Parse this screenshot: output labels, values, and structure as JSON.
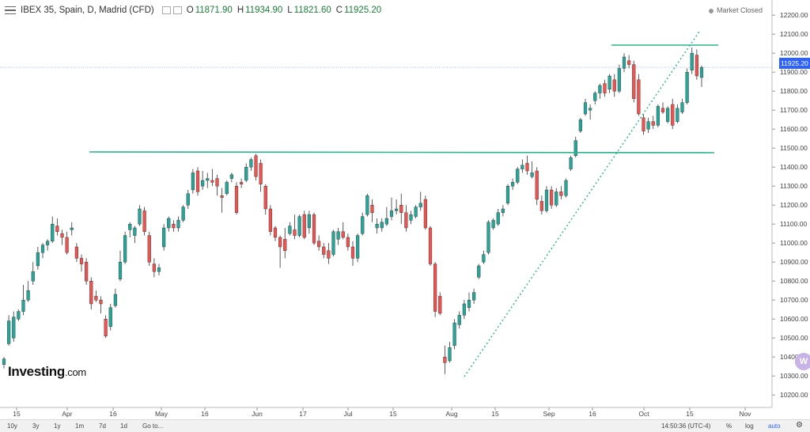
{
  "header": {
    "symbol_title": "IBEX 35, Spain, D, Madrid (CFD)",
    "open_label": "O",
    "open": "11871.90",
    "high_label": "H",
    "high": "11934.90",
    "low_label": "L",
    "low": "11821.60",
    "close_label": "C",
    "close": "11925.20",
    "market_status": "Market Closed"
  },
  "brand": {
    "name": "Investing",
    "suffix": ".com"
  },
  "price_tag": "11925.20",
  "widget_badge": "W",
  "toolbar": {
    "ranges": [
      "10y",
      "3y",
      "1y",
      "1m",
      "7d",
      "1d"
    ],
    "goto": "Go to...",
    "time": "14:50:36 (UTC-4)",
    "percent": "%",
    "log": "log",
    "auto": "auto"
  },
  "colors": {
    "up": "#26a69a",
    "down": "#ef5350",
    "line": "#2bb58a",
    "price_tag": "#2e62ff"
  },
  "chart_data": {
    "type": "candlestick",
    "y_ticks": [
      "12200.00",
      "12100.00",
      "12000.00",
      "11900.00",
      "11800.00",
      "11700.00",
      "11600.00",
      "11500.00",
      "11400.00",
      "11300.00",
      "11200.00",
      "11100.00",
      "11000.00",
      "10900.00",
      "10800.00",
      "10700.00",
      "10600.00",
      "10500.00",
      "10400.00",
      "10300.00",
      "10200.00"
    ],
    "ylim": [
      10180,
      12230
    ],
    "x_ticks": [
      "15",
      "Apr",
      "16",
      "May",
      "16",
      "Jun",
      "17",
      "Jul",
      "15",
      "Aug",
      "15",
      "Sep",
      "16",
      "Oct",
      "15",
      "Nov"
    ],
    "last_price": 11925.2,
    "series": [
      {
        "o": 10360,
        "h": 10400,
        "l": 10340,
        "c": 10390
      },
      {
        "o": 10470,
        "h": 10620,
        "l": 10460,
        "c": 10590
      },
      {
        "o": 10500,
        "h": 10640,
        "l": 10480,
        "c": 10610
      },
      {
        "o": 10600,
        "h": 10650,
        "l": 10590,
        "c": 10640
      },
      {
        "o": 10640,
        "h": 10780,
        "l": 10620,
        "c": 10700
      },
      {
        "o": 10700,
        "h": 10800,
        "l": 10690,
        "c": 10750
      },
      {
        "o": 10800,
        "h": 10900,
        "l": 10780,
        "c": 10850
      },
      {
        "o": 10880,
        "h": 10980,
        "l": 10860,
        "c": 10950
      },
      {
        "o": 10950,
        "h": 11000,
        "l": 10920,
        "c": 10990
      },
      {
        "o": 10990,
        "h": 11020,
        "l": 10960,
        "c": 11010
      },
      {
        "o": 11010,
        "h": 11140,
        "l": 11000,
        "c": 11100
      },
      {
        "o": 11090,
        "h": 11130,
        "l": 11040,
        "c": 11060
      },
      {
        "o": 11050,
        "h": 11070,
        "l": 10990,
        "c": 11030
      },
      {
        "o": 11030,
        "h": 11060,
        "l": 10940,
        "c": 10950
      },
      {
        "o": 11070,
        "h": 11110,
        "l": 11040,
        "c": 11080
      },
      {
        "o": 10980,
        "h": 11000,
        "l": 10900,
        "c": 10920
      },
      {
        "o": 10920,
        "h": 10940,
        "l": 10850,
        "c": 10890
      },
      {
        "o": 10900,
        "h": 10920,
        "l": 10780,
        "c": 10800
      },
      {
        "o": 10800,
        "h": 10820,
        "l": 10650,
        "c": 10680
      },
      {
        "o": 10720,
        "h": 10750,
        "l": 10690,
        "c": 10700
      },
      {
        "o": 10700,
        "h": 10720,
        "l": 10630,
        "c": 10680
      },
      {
        "o": 10600,
        "h": 10620,
        "l": 10500,
        "c": 10510
      },
      {
        "o": 10560,
        "h": 10680,
        "l": 10540,
        "c": 10660
      },
      {
        "o": 10670,
        "h": 10760,
        "l": 10660,
        "c": 10730
      },
      {
        "o": 10810,
        "h": 10960,
        "l": 10800,
        "c": 10900
      },
      {
        "o": 10900,
        "h": 11060,
        "l": 10890,
        "c": 11040
      },
      {
        "o": 11070,
        "h": 11110,
        "l": 11030,
        "c": 11100
      },
      {
        "o": 11040,
        "h": 11090,
        "l": 11000,
        "c": 11080
      },
      {
        "o": 11100,
        "h": 11200,
        "l": 11090,
        "c": 11180
      },
      {
        "o": 11170,
        "h": 11190,
        "l": 11040,
        "c": 11060
      },
      {
        "o": 11040,
        "h": 11060,
        "l": 10880,
        "c": 10900
      },
      {
        "o": 10890,
        "h": 10920,
        "l": 10820,
        "c": 10850
      },
      {
        "o": 10850,
        "h": 10890,
        "l": 10830,
        "c": 10870
      },
      {
        "o": 10980,
        "h": 11100,
        "l": 10960,
        "c": 11080
      },
      {
        "o": 11080,
        "h": 11140,
        "l": 11060,
        "c": 11130
      },
      {
        "o": 11100,
        "h": 11120,
        "l": 11060,
        "c": 11080
      },
      {
        "o": 11080,
        "h": 11140,
        "l": 11060,
        "c": 11120
      },
      {
        "o": 11120,
        "h": 11200,
        "l": 11110,
        "c": 11190
      },
      {
        "o": 11200,
        "h": 11280,
        "l": 11180,
        "c": 11260
      },
      {
        "o": 11280,
        "h": 11390,
        "l": 11260,
        "c": 11370
      },
      {
        "o": 11380,
        "h": 11400,
        "l": 11250,
        "c": 11270
      },
      {
        "o": 11300,
        "h": 11380,
        "l": 11280,
        "c": 11330
      },
      {
        "o": 11330,
        "h": 11370,
        "l": 11290,
        "c": 11340
      },
      {
        "o": 11330,
        "h": 11390,
        "l": 11300,
        "c": 11320
      },
      {
        "o": 11340,
        "h": 11360,
        "l": 11250,
        "c": 11300
      },
      {
        "o": 11250,
        "h": 11290,
        "l": 11160,
        "c": 11240
      },
      {
        "o": 11260,
        "h": 11330,
        "l": 11250,
        "c": 11320
      },
      {
        "o": 11340,
        "h": 11370,
        "l": 11320,
        "c": 11360
      },
      {
        "o": 11300,
        "h": 11320,
        "l": 11150,
        "c": 11160
      },
      {
        "o": 11320,
        "h": 11340,
        "l": 11290,
        "c": 11310
      },
      {
        "o": 11330,
        "h": 11420,
        "l": 11320,
        "c": 11400
      },
      {
        "o": 11400,
        "h": 11450,
        "l": 11380,
        "c": 11440
      },
      {
        "o": 11460,
        "h": 11470,
        "l": 11330,
        "c": 11350
      },
      {
        "o": 11420,
        "h": 11440,
        "l": 11270,
        "c": 11310
      },
      {
        "o": 11300,
        "h": 11310,
        "l": 11150,
        "c": 11180
      },
      {
        "o": 11180,
        "h": 11200,
        "l": 11040,
        "c": 11060
      },
      {
        "o": 11080,
        "h": 11090,
        "l": 11010,
        "c": 11030
      },
      {
        "o": 11030,
        "h": 11040,
        "l": 10870,
        "c": 10980
      },
      {
        "o": 11020,
        "h": 11080,
        "l": 10920,
        "c": 10960
      },
      {
        "o": 11050,
        "h": 11110,
        "l": 11040,
        "c": 11090
      },
      {
        "o": 11070,
        "h": 11150,
        "l": 11020,
        "c": 11040
      },
      {
        "o": 11040,
        "h": 11150,
        "l": 11030,
        "c": 11140
      },
      {
        "o": 11150,
        "h": 11170,
        "l": 11020,
        "c": 11030
      },
      {
        "o": 11080,
        "h": 11170,
        "l": 11050,
        "c": 11150
      },
      {
        "o": 11150,
        "h": 11160,
        "l": 10990,
        "c": 11000
      },
      {
        "o": 11010,
        "h": 11040,
        "l": 10960,
        "c": 10980
      },
      {
        "o": 10980,
        "h": 11000,
        "l": 10920,
        "c": 10940
      },
      {
        "o": 10960,
        "h": 11000,
        "l": 10890,
        "c": 10920
      },
      {
        "o": 10940,
        "h": 11070,
        "l": 10930,
        "c": 11060
      },
      {
        "o": 11020,
        "h": 11080,
        "l": 10990,
        "c": 11060
      },
      {
        "o": 11060,
        "h": 11110,
        "l": 11020,
        "c": 11030
      },
      {
        "o": 11030,
        "h": 11050,
        "l": 10960,
        "c": 10980
      },
      {
        "o": 10980,
        "h": 11010,
        "l": 10880,
        "c": 10920
      },
      {
        "o": 10920,
        "h": 11050,
        "l": 10900,
        "c": 11040
      },
      {
        "o": 11050,
        "h": 11160,
        "l": 11040,
        "c": 11140
      },
      {
        "o": 11150,
        "h": 11260,
        "l": 11140,
        "c": 11250
      },
      {
        "o": 11200,
        "h": 11230,
        "l": 11110,
        "c": 11160
      },
      {
        "o": 11080,
        "h": 11130,
        "l": 11050,
        "c": 11100
      },
      {
        "o": 11080,
        "h": 11130,
        "l": 11060,
        "c": 11110
      },
      {
        "o": 11100,
        "h": 11190,
        "l": 11090,
        "c": 11130
      },
      {
        "o": 11140,
        "h": 11240,
        "l": 11120,
        "c": 11170
      },
      {
        "o": 11170,
        "h": 11230,
        "l": 11150,
        "c": 11180
      },
      {
        "o": 11200,
        "h": 11260,
        "l": 11100,
        "c": 11160
      },
      {
        "o": 11160,
        "h": 11200,
        "l": 11060,
        "c": 11080
      },
      {
        "o": 11120,
        "h": 11170,
        "l": 11100,
        "c": 11150
      },
      {
        "o": 11140,
        "h": 11200,
        "l": 11130,
        "c": 11190
      },
      {
        "o": 11190,
        "h": 11270,
        "l": 11170,
        "c": 11210
      },
      {
        "o": 11230,
        "h": 11250,
        "l": 11070,
        "c": 11080
      },
      {
        "o": 11080,
        "h": 11090,
        "l": 10880,
        "c": 10890
      },
      {
        "o": 10890,
        "h": 10900,
        "l": 10610,
        "c": 10640
      },
      {
        "o": 10720,
        "h": 10740,
        "l": 10620,
        "c": 10630
      },
      {
        "o": 10400,
        "h": 10460,
        "l": 10310,
        "c": 10370
      },
      {
        "o": 10380,
        "h": 10480,
        "l": 10370,
        "c": 10450
      },
      {
        "o": 10460,
        "h": 10600,
        "l": 10440,
        "c": 10580
      },
      {
        "o": 10570,
        "h": 10640,
        "l": 10550,
        "c": 10620
      },
      {
        "o": 10620,
        "h": 10700,
        "l": 10600,
        "c": 10680
      },
      {
        "o": 10660,
        "h": 10740,
        "l": 10640,
        "c": 10700
      },
      {
        "o": 10700,
        "h": 10760,
        "l": 10680,
        "c": 10740
      },
      {
        "o": 10820,
        "h": 10890,
        "l": 10810,
        "c": 10880
      },
      {
        "o": 10900,
        "h": 10960,
        "l": 10890,
        "c": 10940
      },
      {
        "o": 10950,
        "h": 11120,
        "l": 10940,
        "c": 11110
      },
      {
        "o": 11080,
        "h": 11130,
        "l": 11070,
        "c": 11120
      },
      {
        "o": 11100,
        "h": 11180,
        "l": 11090,
        "c": 11160
      },
      {
        "o": 11160,
        "h": 11200,
        "l": 11140,
        "c": 11180
      },
      {
        "o": 11210,
        "h": 11310,
        "l": 11200,
        "c": 11300
      },
      {
        "o": 11300,
        "h": 11340,
        "l": 11280,
        "c": 11320
      },
      {
        "o": 11320,
        "h": 11400,
        "l": 11310,
        "c": 11390
      },
      {
        "o": 11390,
        "h": 11440,
        "l": 11370,
        "c": 11410
      },
      {
        "o": 11420,
        "h": 11460,
        "l": 11360,
        "c": 11380
      },
      {
        "o": 11350,
        "h": 11430,
        "l": 11340,
        "c": 11370
      },
      {
        "o": 11380,
        "h": 11400,
        "l": 11200,
        "c": 11230
      },
      {
        "o": 11220,
        "h": 11250,
        "l": 11150,
        "c": 11170
      },
      {
        "o": 11170,
        "h": 11300,
        "l": 11160,
        "c": 11280
      },
      {
        "o": 11280,
        "h": 11300,
        "l": 11180,
        "c": 11200
      },
      {
        "o": 11200,
        "h": 11290,
        "l": 11190,
        "c": 11270
      },
      {
        "o": 11270,
        "h": 11300,
        "l": 11230,
        "c": 11250
      },
      {
        "o": 11250,
        "h": 11340,
        "l": 11240,
        "c": 11330
      },
      {
        "o": 11390,
        "h": 11460,
        "l": 11380,
        "c": 11450
      },
      {
        "o": 11460,
        "h": 11560,
        "l": 11450,
        "c": 11540
      },
      {
        "o": 11590,
        "h": 11660,
        "l": 11580,
        "c": 11650
      },
      {
        "o": 11680,
        "h": 11760,
        "l": 11670,
        "c": 11740
      },
      {
        "o": 11700,
        "h": 11730,
        "l": 11650,
        "c": 11710
      },
      {
        "o": 11750,
        "h": 11800,
        "l": 11730,
        "c": 11790
      },
      {
        "o": 11790,
        "h": 11840,
        "l": 11760,
        "c": 11830
      },
      {
        "o": 11840,
        "h": 11860,
        "l": 11770,
        "c": 11790
      },
      {
        "o": 11810,
        "h": 11890,
        "l": 11790,
        "c": 11880
      },
      {
        "o": 11860,
        "h": 11890,
        "l": 11770,
        "c": 11800
      },
      {
        "o": 11800,
        "h": 11940,
        "l": 11790,
        "c": 11920
      },
      {
        "o": 11920,
        "h": 12000,
        "l": 11900,
        "c": 11980
      },
      {
        "o": 11960,
        "h": 11990,
        "l": 11920,
        "c": 11940
      },
      {
        "o": 11940,
        "h": 11960,
        "l": 11740,
        "c": 11760
      },
      {
        "o": 11860,
        "h": 11890,
        "l": 11670,
        "c": 11680
      },
      {
        "o": 11660,
        "h": 11680,
        "l": 11570,
        "c": 11590
      },
      {
        "o": 11600,
        "h": 11660,
        "l": 11580,
        "c": 11640
      },
      {
        "o": 11640,
        "h": 11670,
        "l": 11600,
        "c": 11620
      },
      {
        "o": 11620,
        "h": 11730,
        "l": 11610,
        "c": 11720
      },
      {
        "o": 11710,
        "h": 11740,
        "l": 11680,
        "c": 11690
      },
      {
        "o": 11640,
        "h": 11720,
        "l": 11630,
        "c": 11710
      },
      {
        "o": 11730,
        "h": 11760,
        "l": 11600,
        "c": 11620
      },
      {
        "o": 11640,
        "h": 11730,
        "l": 11630,
        "c": 11710
      },
      {
        "o": 11690,
        "h": 11760,
        "l": 11680,
        "c": 11740
      },
      {
        "o": 11740,
        "h": 11920,
        "l": 11730,
        "c": 11900
      },
      {
        "o": 11910,
        "h": 12030,
        "l": 11890,
        "c": 12000
      },
      {
        "o": 11990,
        "h": 12020,
        "l": 11860,
        "c": 11880
      },
      {
        "o": 11871.9,
        "h": 11934.9,
        "l": 11821.6,
        "c": 11925.2
      }
    ]
  }
}
